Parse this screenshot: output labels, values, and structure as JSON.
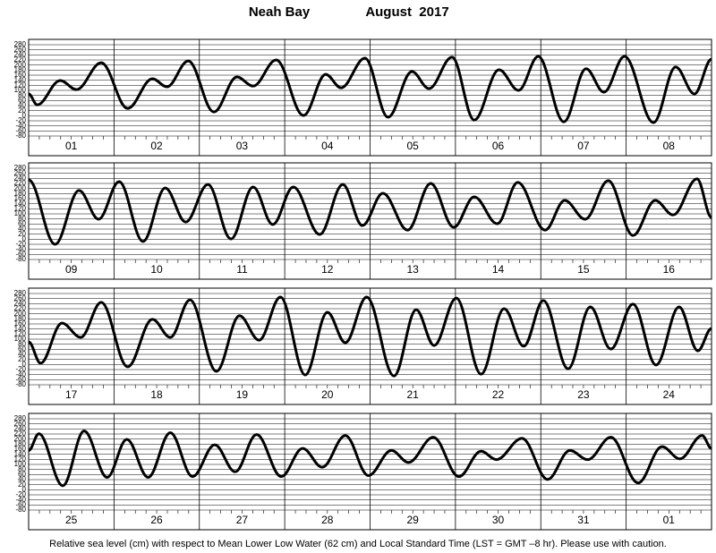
{
  "title": "Neah Bay",
  "subtitle": "August  2017",
  "caption": "Relative sea level (cm) with respect to Mean Lower Low Water (62 cm) and Local Standard Time (LST = GMT –8 hr). Please use with caution.",
  "chart_data": [
    {
      "type": "line",
      "color": "#000000",
      "grid": true,
      "categories": [
        "01",
        "02",
        "03",
        "04",
        "05",
        "06",
        "07",
        "08"
      ],
      "xlim": [
        0,
        8
      ],
      "ylim": [
        -80,
        280
      ],
      "yticks": [
        -80,
        -60,
        -40,
        -20,
        0,
        20,
        40,
        60,
        80,
        100,
        120,
        140,
        160,
        180,
        200,
        220,
        240,
        260,
        280
      ],
      "x": [
        0,
        0.1,
        0.37,
        0.56,
        0.85,
        1.16,
        1.45,
        1.62,
        1.87,
        2.17,
        2.44,
        2.63,
        2.9,
        3.22,
        3.48,
        3.66,
        3.94,
        4.21,
        4.49,
        4.69,
        4.96,
        5.22,
        5.51,
        5.74,
        5.97,
        6.27,
        6.53,
        6.74,
        6.98,
        7.32,
        7.58,
        7.8,
        8
      ],
      "values": [
        86,
        43,
        139,
        103,
        209,
        29,
        146,
        114,
        216,
        15,
        153,
        117,
        220,
        1,
        163,
        110,
        227,
        -6,
        174,
        107,
        231,
        -17,
        181,
        100,
        234,
        -24,
        185,
        93,
        234,
        -27,
        192,
        86,
        223
      ]
    },
    {
      "type": "line",
      "color": "#000000",
      "grid": true,
      "categories": [
        "09",
        "10",
        "11",
        "12",
        "13",
        "14",
        "15",
        "16"
      ],
      "xlim": [
        0,
        8
      ],
      "ylim": [
        -80,
        280
      ],
      "yticks": [
        -80,
        -60,
        -40,
        -20,
        0,
        20,
        40,
        60,
        80,
        100,
        120,
        140,
        160,
        180,
        200,
        220,
        240,
        260,
        280
      ],
      "x": [
        0,
        0.31,
        0.59,
        0.82,
        1.06,
        1.34,
        1.6,
        1.84,
        2.1,
        2.37,
        2.63,
        2.86,
        3.1,
        3.41,
        3.68,
        3.91,
        4.15,
        4.44,
        4.71,
        4.98,
        5.22,
        5.49,
        5.73,
        6.05,
        6.28,
        6.52,
        6.79,
        7.08,
        7.34,
        7.55,
        7.83,
        8
      ],
      "values": [
        234,
        -20,
        192,
        79,
        227,
        -9,
        202,
        68,
        216,
        1,
        206,
        58,
        206,
        19,
        216,
        54,
        181,
        36,
        220,
        47,
        167,
        61,
        224,
        36,
        153,
        79,
        231,
        15,
        153,
        96,
        238,
        86
      ]
    },
    {
      "type": "line",
      "color": "#000000",
      "grid": true,
      "categories": [
        "17",
        "18",
        "19",
        "20",
        "21",
        "22",
        "23",
        "24"
      ],
      "xlim": [
        0,
        8
      ],
      "ylim": [
        -80,
        280
      ],
      "yticks": [
        -80,
        -60,
        -40,
        -20,
        0,
        20,
        40,
        60,
        80,
        100,
        120,
        140,
        160,
        180,
        200,
        220,
        240,
        260,
        280
      ],
      "x": [
        0,
        0.14,
        0.39,
        0.61,
        0.85,
        1.16,
        1.45,
        1.66,
        1.89,
        2.2,
        2.47,
        2.7,
        2.95,
        3.24,
        3.5,
        3.71,
        3.96,
        4.28,
        4.54,
        4.75,
        5.01,
        5.3,
        5.57,
        5.8,
        6.03,
        6.32,
        6.58,
        6.82,
        7.08,
        7.35,
        7.62,
        7.84,
        8
      ],
      "values": [
        89,
        5,
        163,
        107,
        245,
        -9,
        178,
        107,
        255,
        -27,
        192,
        96,
        266,
        -41,
        206,
        86,
        266,
        -45,
        216,
        75,
        262,
        -38,
        220,
        72,
        252,
        -17,
        227,
        61,
        238,
        -2,
        227,
        54,
        142
      ]
    },
    {
      "type": "line",
      "color": "#000000",
      "grid": true,
      "categories": [
        "25",
        "26",
        "27",
        "28",
        "29",
        "30",
        "31",
        "01"
      ],
      "xlim": [
        0,
        8
      ],
      "ylim": [
        -80,
        280
      ],
      "yticks": [
        -80,
        -60,
        -40,
        -20,
        0,
        20,
        40,
        60,
        80,
        100,
        120,
        140,
        160,
        180,
        200,
        220,
        240,
        260,
        280
      ],
      "x": [
        0,
        0.12,
        0.4,
        0.65,
        0.92,
        1.15,
        1.4,
        1.66,
        1.92,
        2.18,
        2.42,
        2.67,
        2.96,
        3.21,
        3.44,
        3.71,
        3.98,
        4.25,
        4.45,
        4.74,
        5.04,
        5.3,
        5.48,
        5.78,
        6.08,
        6.34,
        6.55,
        6.82,
        7.14,
        7.42,
        7.63,
        7.89,
        8
      ],
      "values": [
        155,
        221,
        16,
        232,
        49,
        199,
        49,
        225,
        52,
        177,
        71,
        218,
        52,
        163,
        89,
        214,
        56,
        155,
        108,
        207,
        52,
        152,
        119,
        203,
        41,
        155,
        119,
        207,
        27,
        170,
        122,
        214,
        163
      ]
    }
  ]
}
